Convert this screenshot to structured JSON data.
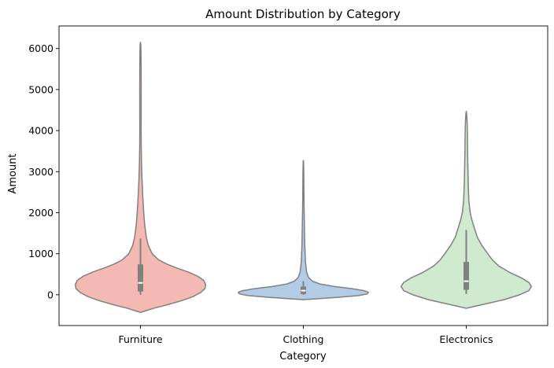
{
  "chart_data": {
    "type": "violin",
    "title": "Amount Distribution by Category",
    "xlabel": "Category",
    "ylabel": "Amount",
    "ylim": [
      -750,
      6550
    ],
    "yticks": [
      0,
      1000,
      2000,
      3000,
      4000,
      5000,
      6000
    ],
    "grid": false,
    "categories": [
      "Furniture",
      "Clothing",
      "Electronics"
    ],
    "colors": [
      "#f4b9b2",
      "#b3cce6",
      "#d0ead0"
    ],
    "outline_color": "#808080",
    "box_color": "#808080",
    "median_color": "#ffffff",
    "violins": [
      {
        "category": "Furniture",
        "box": {
          "whisker_low": 0,
          "q1": 80,
          "median": 290,
          "q3": 740,
          "whisker_high": 1370
        },
        "density": [
          [
            -430,
            0.0
          ],
          [
            -400,
            0.06
          ],
          [
            -330,
            0.2
          ],
          [
            -250,
            0.4
          ],
          [
            -150,
            0.62
          ],
          [
            -50,
            0.8
          ],
          [
            50,
            0.92
          ],
          [
            150,
            0.99
          ],
          [
            250,
            1.0
          ],
          [
            350,
            0.97
          ],
          [
            450,
            0.88
          ],
          [
            550,
            0.74
          ],
          [
            650,
            0.56
          ],
          [
            750,
            0.4
          ],
          [
            850,
            0.28
          ],
          [
            1000,
            0.18
          ],
          [
            1200,
            0.12
          ],
          [
            1400,
            0.09
          ],
          [
            1700,
            0.065
          ],
          [
            2000,
            0.05
          ],
          [
            2400,
            0.035
          ],
          [
            2800,
            0.024
          ],
          [
            3200,
            0.016
          ],
          [
            3600,
            0.012
          ],
          [
            4000,
            0.01
          ],
          [
            4500,
            0.011
          ],
          [
            5000,
            0.011
          ],
          [
            5500,
            0.01
          ],
          [
            5900,
            0.008
          ],
          [
            6100,
            0.005
          ],
          [
            6150,
            0.0
          ]
        ]
      },
      {
        "category": "Clothing",
        "box": {
          "whisker_low": 0,
          "q1": 20,
          "median": 100,
          "q3": 200,
          "whisker_high": 330
        },
        "density": [
          [
            -120,
            0.0
          ],
          [
            -100,
            0.18
          ],
          [
            -60,
            0.55
          ],
          [
            -20,
            0.85
          ],
          [
            20,
            0.98
          ],
          [
            60,
            1.0
          ],
          [
            100,
            0.93
          ],
          [
            150,
            0.74
          ],
          [
            200,
            0.48
          ],
          [
            260,
            0.26
          ],
          [
            330,
            0.14
          ],
          [
            420,
            0.08
          ],
          [
            550,
            0.05
          ],
          [
            800,
            0.032
          ],
          [
            1200,
            0.022
          ],
          [
            1500,
            0.018
          ],
          [
            1800,
            0.015
          ],
          [
            2200,
            0.01
          ],
          [
            2600,
            0.008
          ],
          [
            3000,
            0.006
          ],
          [
            3250,
            0.003
          ],
          [
            3270,
            0.0
          ]
        ]
      },
      {
        "category": "Electronics",
        "box": {
          "whisker_low": 20,
          "q1": 120,
          "median": 330,
          "q3": 800,
          "whisker_high": 1580
        },
        "density": [
          [
            -330,
            0.0
          ],
          [
            -300,
            0.08
          ],
          [
            -220,
            0.3
          ],
          [
            -120,
            0.58
          ],
          [
            0,
            0.82
          ],
          [
            100,
            0.96
          ],
          [
            200,
            1.0
          ],
          [
            300,
            0.96
          ],
          [
            400,
            0.86
          ],
          [
            550,
            0.66
          ],
          [
            700,
            0.5
          ],
          [
            850,
            0.4
          ],
          [
            1000,
            0.33
          ],
          [
            1200,
            0.24
          ],
          [
            1400,
            0.17
          ],
          [
            1600,
            0.13
          ],
          [
            1800,
            0.09
          ],
          [
            2000,
            0.06
          ],
          [
            2300,
            0.04
          ],
          [
            2700,
            0.03
          ],
          [
            3100,
            0.025
          ],
          [
            3500,
            0.02
          ],
          [
            3900,
            0.018
          ],
          [
            4200,
            0.013
          ],
          [
            4400,
            0.006
          ],
          [
            4470,
            0.0
          ]
        ]
      }
    ]
  }
}
